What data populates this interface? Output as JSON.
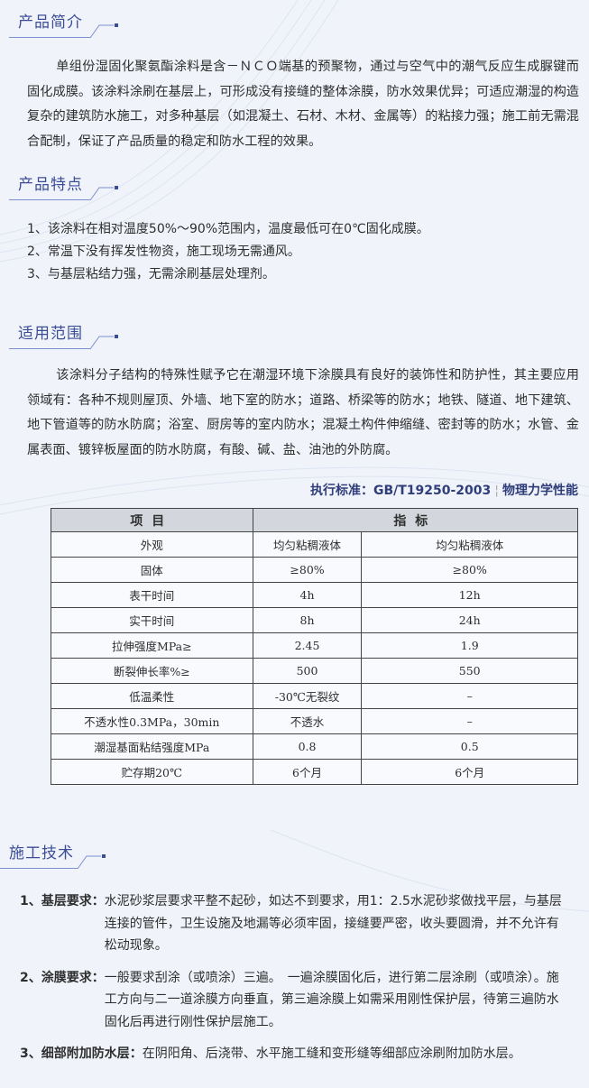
{
  "sections": {
    "intro": {
      "title": "产品简介",
      "text": "单组份湿固化聚氨酯涂料是含－ＮＣＯ端基的预聚物，通过与空气中的潮气反应生成脲键而固化成膜。该涂料涂刷在基层上，可形成没有接缝的整体涂膜，防水效果优异；可适应潮湿的构造复杂的建筑防水施工，对多种基层（如混凝土、石材、木材、金属等）的粘接力强；施工前无需混合配制，保证了产品质量的稳定和防水工程的效果。"
    },
    "features": {
      "title": "产品特点",
      "items": [
        "1、该涂料在相对温度50%～90%范围内，温度最低可在0℃固化成膜。",
        "2、常温下没有挥发性物资，施工现场无需通风。",
        "3、与基层粘结力强，无需涂刷基层处理剂。"
      ]
    },
    "scope": {
      "title": "适用范围",
      "text": "该涂料分子结构的特殊性赋予它在潮湿环境下涂膜具有良好的装饰性和防护性，其主要应用领域有：各种不规则屋顶、外墙、地下室的防水；道路、桥梁等的防水；地铁、隧道、地下建筑、地下管道等的防水防腐；浴室、厨房等的室内防水；混凝土构件伸缩缝、密封等的防水；水管、金属表面、镀锌板屋面的防水防腐，有酸、碱、盐、油池的外防腐。"
    },
    "table": {
      "standard": "执行标准：GB/T19250-2003",
      "subtitle": "物理力学性能",
      "headers": [
        "项目",
        "指标"
      ],
      "rows": [
        [
          "外观",
          "均匀粘稠液体",
          "均匀粘稠液体"
        ],
        [
          "固体",
          "≥80%",
          "≥80%"
        ],
        [
          "表干时间",
          "4h",
          "12h"
        ],
        [
          "实干时间",
          "8h",
          "24h"
        ],
        [
          "拉伸强度MPa≥",
          "2.45",
          "1.9"
        ],
        [
          "断裂伸长率%≥",
          "500",
          "550"
        ],
        [
          "低温柔性",
          "-30℃无裂纹",
          "–"
        ],
        [
          "不透水性0.3MPa，30min",
          "不透水",
          "–"
        ],
        [
          "潮湿基面粘结强度MPa",
          "0.8",
          "0.5"
        ],
        [
          "贮存期20℃",
          "6个月",
          "6个月"
        ]
      ]
    },
    "technique": {
      "title": "施工技术",
      "items": [
        {
          "label": "1、基层要求：",
          "text": "水泥砂浆层要求平整不起砂，如达不到要求，用1：2.5水泥砂浆做找平层，与基层连接的管件，卫生设施及地漏等必须牢固，接缝要严密，收头要圆滑，并不允许有松动现象。"
        },
        {
          "label": "2、涂膜要求：",
          "text": "一般要求刮涂（或喷涂）三遍。　一遍涂膜固化后，进行第二层涂刷（或喷涂）。施工方向与二一道涂膜方向垂直，第三遍涂膜上如需采用刚性保护层，待第三遍防水固化后再进行刚性保护层施工。"
        },
        {
          "label": "3、细部附加防水层：",
          "text": "在阴阳角、后浇带、水平施工缝和变形缝等细部应涂刷附加防水层。"
        }
      ]
    }
  },
  "colors": {
    "heading": "#3c4d98",
    "background": "#f0f4fa",
    "table_header": "#d3d6dc"
  }
}
